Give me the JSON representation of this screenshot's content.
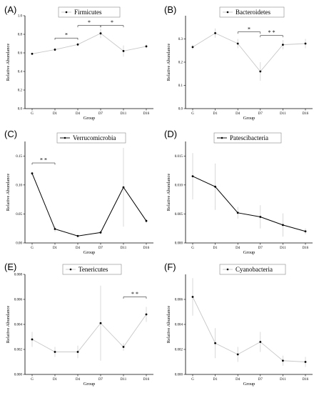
{
  "chart_data": [
    {
      "panel": "(A)",
      "type": "line",
      "line_color": "#c8c8c8",
      "marker_color": "#000000",
      "legend": "Firmicutes",
      "xlabel": "Group",
      "ylabel": "Relative Abundance",
      "categories": [
        "G",
        "D1",
        "D4",
        "D7",
        "D11",
        "D16"
      ],
      "values": [
        0.59,
        0.635,
        0.69,
        0.81,
        0.62,
        0.67
      ],
      "errors": [
        0.01,
        0.015,
        0.02,
        0.05,
        0.06,
        0.02
      ],
      "ylim": [
        0.0,
        1.0
      ],
      "yticks": [
        {
          "v": 0.0,
          "t": "0.0"
        },
        {
          "v": 0.2,
          "t": "0.2"
        },
        {
          "v": 0.4,
          "t": "0.4"
        },
        {
          "v": 0.6,
          "t": "0.6"
        },
        {
          "v": 0.8,
          "t": "0.8"
        },
        {
          "v": 1.0,
          "t": "1.0"
        }
      ],
      "significance": [
        {
          "from": 1,
          "to": 2,
          "y": 0.76,
          "text": "*"
        },
        {
          "from": 2,
          "to": 3,
          "y": 0.895,
          "text": "*"
        },
        {
          "from": 3,
          "to": 4,
          "y": 0.895,
          "text": "*"
        }
      ]
    },
    {
      "panel": "(B)",
      "type": "line",
      "line_color": "#c8c8c8",
      "marker_color": "#000000",
      "legend": "Bacteroidetes",
      "xlabel": "Group",
      "ylabel": "Relative Abundance",
      "categories": [
        "G",
        "D1",
        "D4",
        "D7",
        "D11",
        "D16"
      ],
      "values": [
        0.265,
        0.325,
        0.28,
        0.16,
        0.275,
        0.28
      ],
      "errors": [
        0.01,
        0.02,
        0.02,
        0.04,
        0.02,
        0.02
      ],
      "ylim": [
        0.0,
        0.4
      ],
      "yticks": [
        {
          "v": 0.0,
          "t": "0.0"
        },
        {
          "v": 0.1,
          "t": "0.1"
        },
        {
          "v": 0.2,
          "t": "0.2"
        },
        {
          "v": 0.3,
          "t": "0.3"
        }
      ],
      "significance": [
        {
          "from": 2,
          "to": 3,
          "y": 0.33,
          "text": "*"
        },
        {
          "from": 3,
          "to": 4,
          "y": 0.315,
          "text": "* *"
        }
      ]
    },
    {
      "panel": "(C)",
      "type": "line",
      "line_color": "#000000",
      "marker_color": "#000000",
      "legend": "Verrucomicrobia",
      "xlabel": "Group",
      "ylabel": "Relative Abundance",
      "categories": [
        "G",
        "D1",
        "D4",
        "D7",
        "D11",
        "D16"
      ],
      "values": [
        0.12,
        0.024,
        0.012,
        0.018,
        0.096,
        0.038
      ],
      "errors": [
        0.003,
        0.005,
        0.002,
        0.003,
        0.068,
        0.003
      ],
      "ylim": [
        0.0,
        0.175
      ],
      "yticks": [
        {
          "v": 0.0,
          "t": "0.00"
        },
        {
          "v": 0.05,
          "t": "0.05"
        },
        {
          "v": 0.1,
          "t": "0.10"
        },
        {
          "v": 0.15,
          "t": "0.15"
        }
      ],
      "significance": [
        {
          "from": 0,
          "to": 1,
          "y": 0.138,
          "text": "* *"
        }
      ]
    },
    {
      "panel": "(D)",
      "type": "line",
      "line_color": "#000000",
      "marker_color": "#000000",
      "legend": "Patescibacteria",
      "xlabel": "Group",
      "ylabel": "Relative Abundance",
      "categories": [
        "G",
        "D1",
        "D4",
        "D7",
        "D11",
        "D16"
      ],
      "values": [
        0.0115,
        0.0097,
        0.0052,
        0.0045,
        0.0031,
        0.002
      ],
      "errors": [
        0.004,
        0.004,
        0.001,
        0.002,
        0.002,
        0.0005
      ],
      "ylim": [
        0.0,
        0.0175
      ],
      "yticks": [
        {
          "v": 0.0,
          "t": "0.000"
        },
        {
          "v": 0.005,
          "t": "0.005"
        },
        {
          "v": 0.01,
          "t": "0.010"
        },
        {
          "v": 0.015,
          "t": "0.015"
        }
      ],
      "significance": []
    },
    {
      "panel": "(E)",
      "type": "line",
      "line_color": "#c8c8c8",
      "marker_color": "#000000",
      "legend": "Tenericutes",
      "xlabel": "Group",
      "ylabel": "Relative Abundance",
      "categories": [
        "G",
        "D1",
        "D4",
        "D7",
        "D11",
        "D16"
      ],
      "values": [
        0.0028,
        0.0018,
        0.0018,
        0.0041,
        0.0022,
        0.0048
      ],
      "errors": [
        0.0006,
        0.0004,
        0.0005,
        0.003,
        0.0003,
        0.0006
      ],
      "ylim": [
        0.0,
        0.008
      ],
      "yticks": [
        {
          "v": 0.0,
          "t": "0.000"
        },
        {
          "v": 0.002,
          "t": "0.002"
        },
        {
          "v": 0.004,
          "t": "0.004"
        },
        {
          "v": 0.006,
          "t": "0.006"
        },
        {
          "v": 0.008,
          "t": "0.008"
        }
      ],
      "significance": [
        {
          "from": 4,
          "to": 5,
          "y": 0.0062,
          "text": "* *"
        }
      ]
    },
    {
      "panel": "(F)",
      "type": "line",
      "line_color": "#c8c8c8",
      "marker_color": "#000000",
      "legend": "Cyanobacteria",
      "xlabel": "Group",
      "ylabel": "Relative Abundance",
      "categories": [
        "G",
        "D1",
        "D4",
        "D7",
        "D11",
        "D16"
      ],
      "values": [
        0.0062,
        0.0025,
        0.0016,
        0.0026,
        0.0011,
        0.001
      ],
      "errors": [
        0.0015,
        0.0012,
        0.0006,
        0.0008,
        0.0004,
        0.0004
      ],
      "ylim": [
        0.0,
        0.008
      ],
      "yticks": [
        {
          "v": 0.0,
          "t": "0.000"
        },
        {
          "v": 0.002,
          "t": "0.002"
        },
        {
          "v": 0.004,
          "t": "0.004"
        },
        {
          "v": 0.006,
          "t": "0.006"
        }
      ],
      "significance": []
    }
  ]
}
